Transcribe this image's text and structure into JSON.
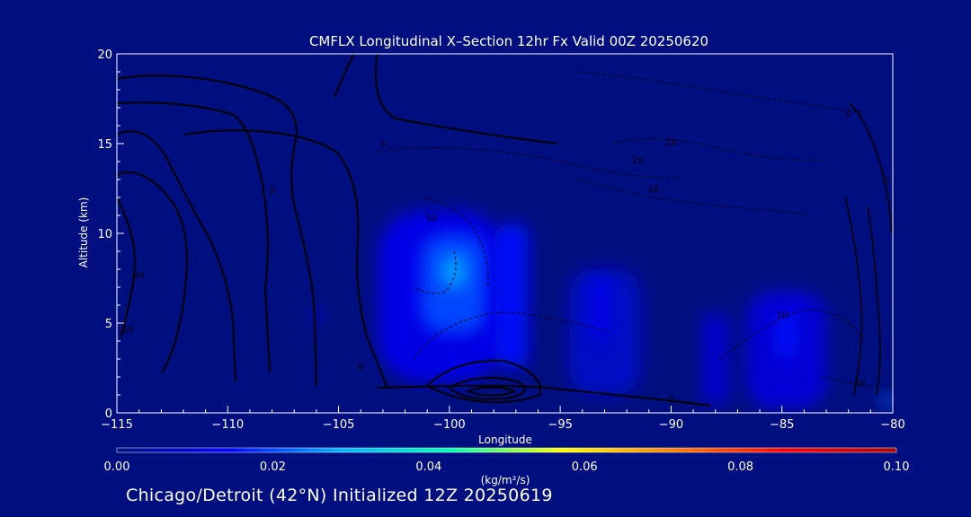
{
  "chart_data": {
    "type": "heatmap",
    "title": "CMFLX Longitudinal X–Section 12hr  Fx Valid 00Z 20250620",
    "xlabel": "Longitude",
    "ylabel": "Altitude (km)",
    "xlim": [
      -115,
      -80
    ],
    "ylim": [
      0,
      20
    ],
    "x_ticks": [
      -115,
      -110,
      -105,
      -100,
      -95,
      -90,
      -85,
      -80
    ],
    "y_ticks": [
      0,
      5,
      10,
      15,
      20
    ],
    "x_tick_labels": [
      "−115",
      "−110",
      "−105",
      "−100",
      "−95",
      "−90",
      "−85",
      "−80"
    ],
    "y_tick_labels": [
      "0",
      "5",
      "10",
      "15",
      "20"
    ],
    "colorbar": {
      "min": 0.0,
      "max": 0.1,
      "ticks": [
        "0.00",
        "0.02",
        "0.04",
        "0.06",
        "0.08",
        "0.10"
      ],
      "unit_label": "(kg/m²/s)",
      "colors": [
        "#000f80",
        "#0000ff",
        "#00b4ff",
        "#00ffb0",
        "#ffff00",
        "#ff8000",
        "#ff0000",
        "#b00000"
      ]
    },
    "background_color": "#000f80",
    "contour_color": "#000000",
    "cells": [
      {
        "lon": -100.4,
        "alt": 6.5,
        "width": 5.6,
        "height": 9.5,
        "value": 0.012
      },
      {
        "lon": -99.8,
        "alt": 7.2,
        "width": 3.0,
        "height": 5.5,
        "value": 0.02
      },
      {
        "lon": -99.8,
        "alt": 7.9,
        "width": 1.2,
        "height": 1.8,
        "value": 0.027
      },
      {
        "lon": -97.2,
        "alt": 6.5,
        "width": 1.5,
        "height": 8.0,
        "value": 0.015
      },
      {
        "lon": -93.0,
        "alt": 4.5,
        "width": 3.2,
        "height": 7.0,
        "value": 0.008
      },
      {
        "lon": -93.2,
        "alt": 5.8,
        "width": 0.9,
        "height": 3.5,
        "value": 0.012
      },
      {
        "lon": -88.0,
        "alt": 3.0,
        "width": 1.2,
        "height": 5.0,
        "value": 0.009
      },
      {
        "lon": -84.8,
        "alt": 3.5,
        "width": 3.6,
        "height": 6.5,
        "value": 0.01
      },
      {
        "lon": -84.8,
        "alt": 4.3,
        "width": 0.8,
        "height": 2.5,
        "value": 0.016
      },
      {
        "lon": -106.0,
        "alt": 5.4,
        "width": 0.5,
        "height": 0.6,
        "value": 0.01
      },
      {
        "lon": -80.2,
        "alt": 0.7,
        "width": 0.6,
        "height": 0.6,
        "value": 0.022
      }
    ],
    "contour_labels": [
      {
        "lon": -103.0,
        "alt": 14.8,
        "text": "0"
      },
      {
        "lon": -108.0,
        "alt": 12.2,
        "text": "0"
      },
      {
        "lon": -114.0,
        "alt": 7.5,
        "text": "20"
      },
      {
        "lon": -114.5,
        "alt": 4.5,
        "text": "10"
      },
      {
        "lon": -100.8,
        "alt": 10.7,
        "text": "10"
      },
      {
        "lon": -90.0,
        "alt": 14.9,
        "text": "10"
      },
      {
        "lon": -91.5,
        "alt": 13.9,
        "text": "20"
      },
      {
        "lon": -90.8,
        "alt": 12.3,
        "text": "10"
      },
      {
        "lon": -85.0,
        "alt": 5.3,
        "text": "10"
      },
      {
        "lon": -81.5,
        "alt": 1.5,
        "text": "20"
      },
      {
        "lon": -104.0,
        "alt": 2.4,
        "text": "0"
      },
      {
        "lon": -90.0,
        "alt": 0.6,
        "text": "0"
      },
      {
        "lon": -80.3,
        "alt": 12.8,
        "text": "0"
      },
      {
        "lon": -82.0,
        "alt": 16.5,
        "text": "0"
      }
    ]
  },
  "footer": "Chicago/Detroit (42°N) Initialized 12Z 20250619"
}
